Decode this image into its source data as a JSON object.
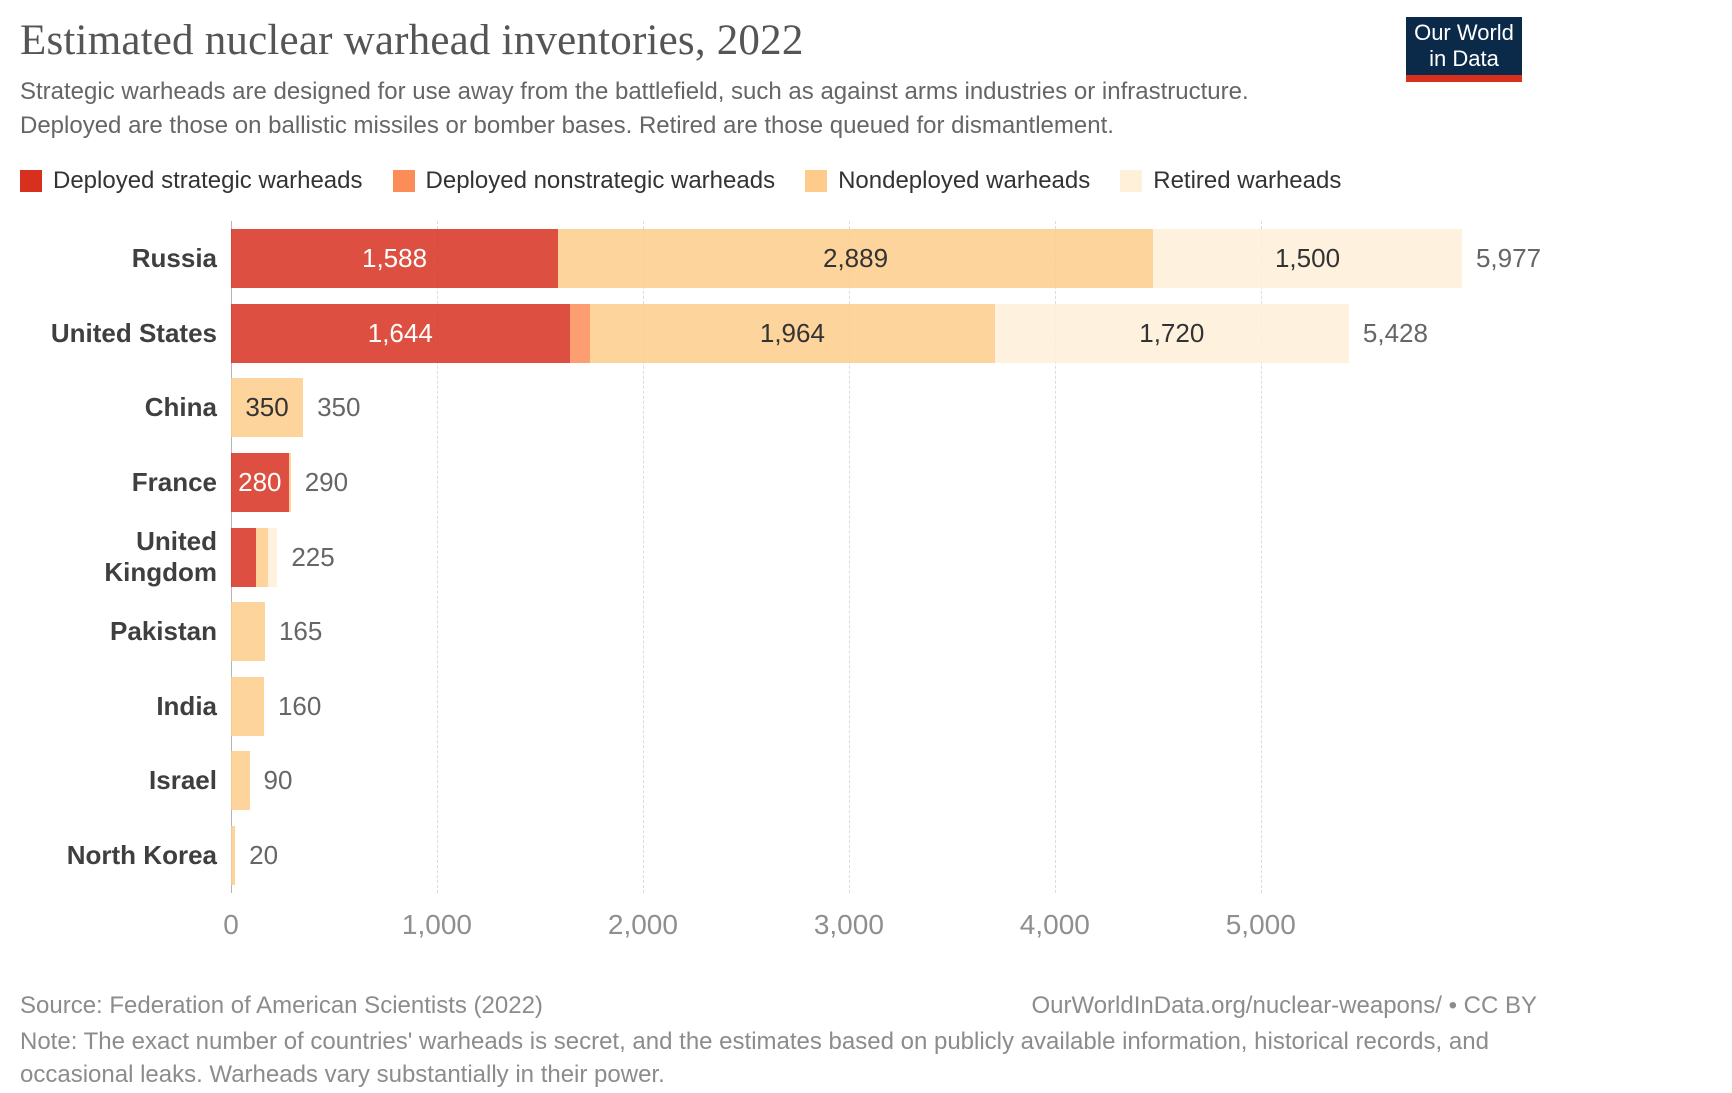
{
  "header": {
    "title": "Estimated nuclear warhead inventories, 2022",
    "subtitle": "Strategic warheads are designed for use away from the battlefield, such as against arms industries or infrastructure. Deployed are those on ballistic missiles or bomber bases. Retired are those queued for dismantlement.",
    "logo": {
      "line1": "Our World",
      "line2": "in Data",
      "bg_color": "#0b2a4a",
      "stripe_color": "#d7301f"
    }
  },
  "legend": [
    {
      "label": "Deployed strategic warheads",
      "color": "#d7301f"
    },
    {
      "label": "Deployed nonstrategic warheads",
      "color": "#fc8d59"
    },
    {
      "label": "Nondeployed warheads",
      "color": "#fdcc8a"
    },
    {
      "label": "Retired warheads",
      "color": "#fef0d9"
    }
  ],
  "chart_data": {
    "type": "bar",
    "orientation": "horizontal",
    "stacked": true,
    "title": "Estimated nuclear warhead inventories, 2022",
    "categories": [
      "Russia",
      "United States",
      "China",
      "France",
      "United Kingdom",
      "Pakistan",
      "India",
      "Israel",
      "North Korea"
    ],
    "series": [
      {
        "name": "Deployed strategic warheads",
        "color": "#d7301f",
        "values": [
          1588,
          1644,
          0,
          280,
          120,
          0,
          0,
          0,
          0
        ]
      },
      {
        "name": "Deployed nonstrategic warheads",
        "color": "#fc8d59",
        "values": [
          0,
          100,
          0,
          0,
          0,
          0,
          0,
          0,
          0
        ]
      },
      {
        "name": "Nondeployed warheads",
        "color": "#fdcc8a",
        "values": [
          2889,
          1964,
          350,
          10,
          60,
          165,
          160,
          90,
          20
        ]
      },
      {
        "name": "Retired warheads",
        "color": "#fef0d9",
        "values": [
          1500,
          1720,
          0,
          0,
          45,
          0,
          0,
          0,
          0
        ]
      }
    ],
    "totals": [
      5977,
      5428,
      350,
      290,
      225,
      165,
      160,
      90,
      20
    ],
    "xlim": [
      0,
      5977
    ],
    "xticks": [
      0,
      1000,
      2000,
      3000,
      4000,
      5000
    ],
    "xtick_labels": [
      "0",
      "1,000",
      "2,000",
      "3,000",
      "4,000",
      "5,000"
    ],
    "grid": "dashed-vertical",
    "legend_position": "top",
    "bar_opacity": 0.85
  },
  "footer": {
    "source": "Source: Federation of American Scientists (2022)",
    "attribution": "OurWorldInData.org/nuclear-weapons/ • CC BY",
    "note": "Note: The exact number of countries' warheads is secret, and the estimates based on publicly available information, historical records, and occasional leaks. Warheads vary substantially in their power."
  }
}
